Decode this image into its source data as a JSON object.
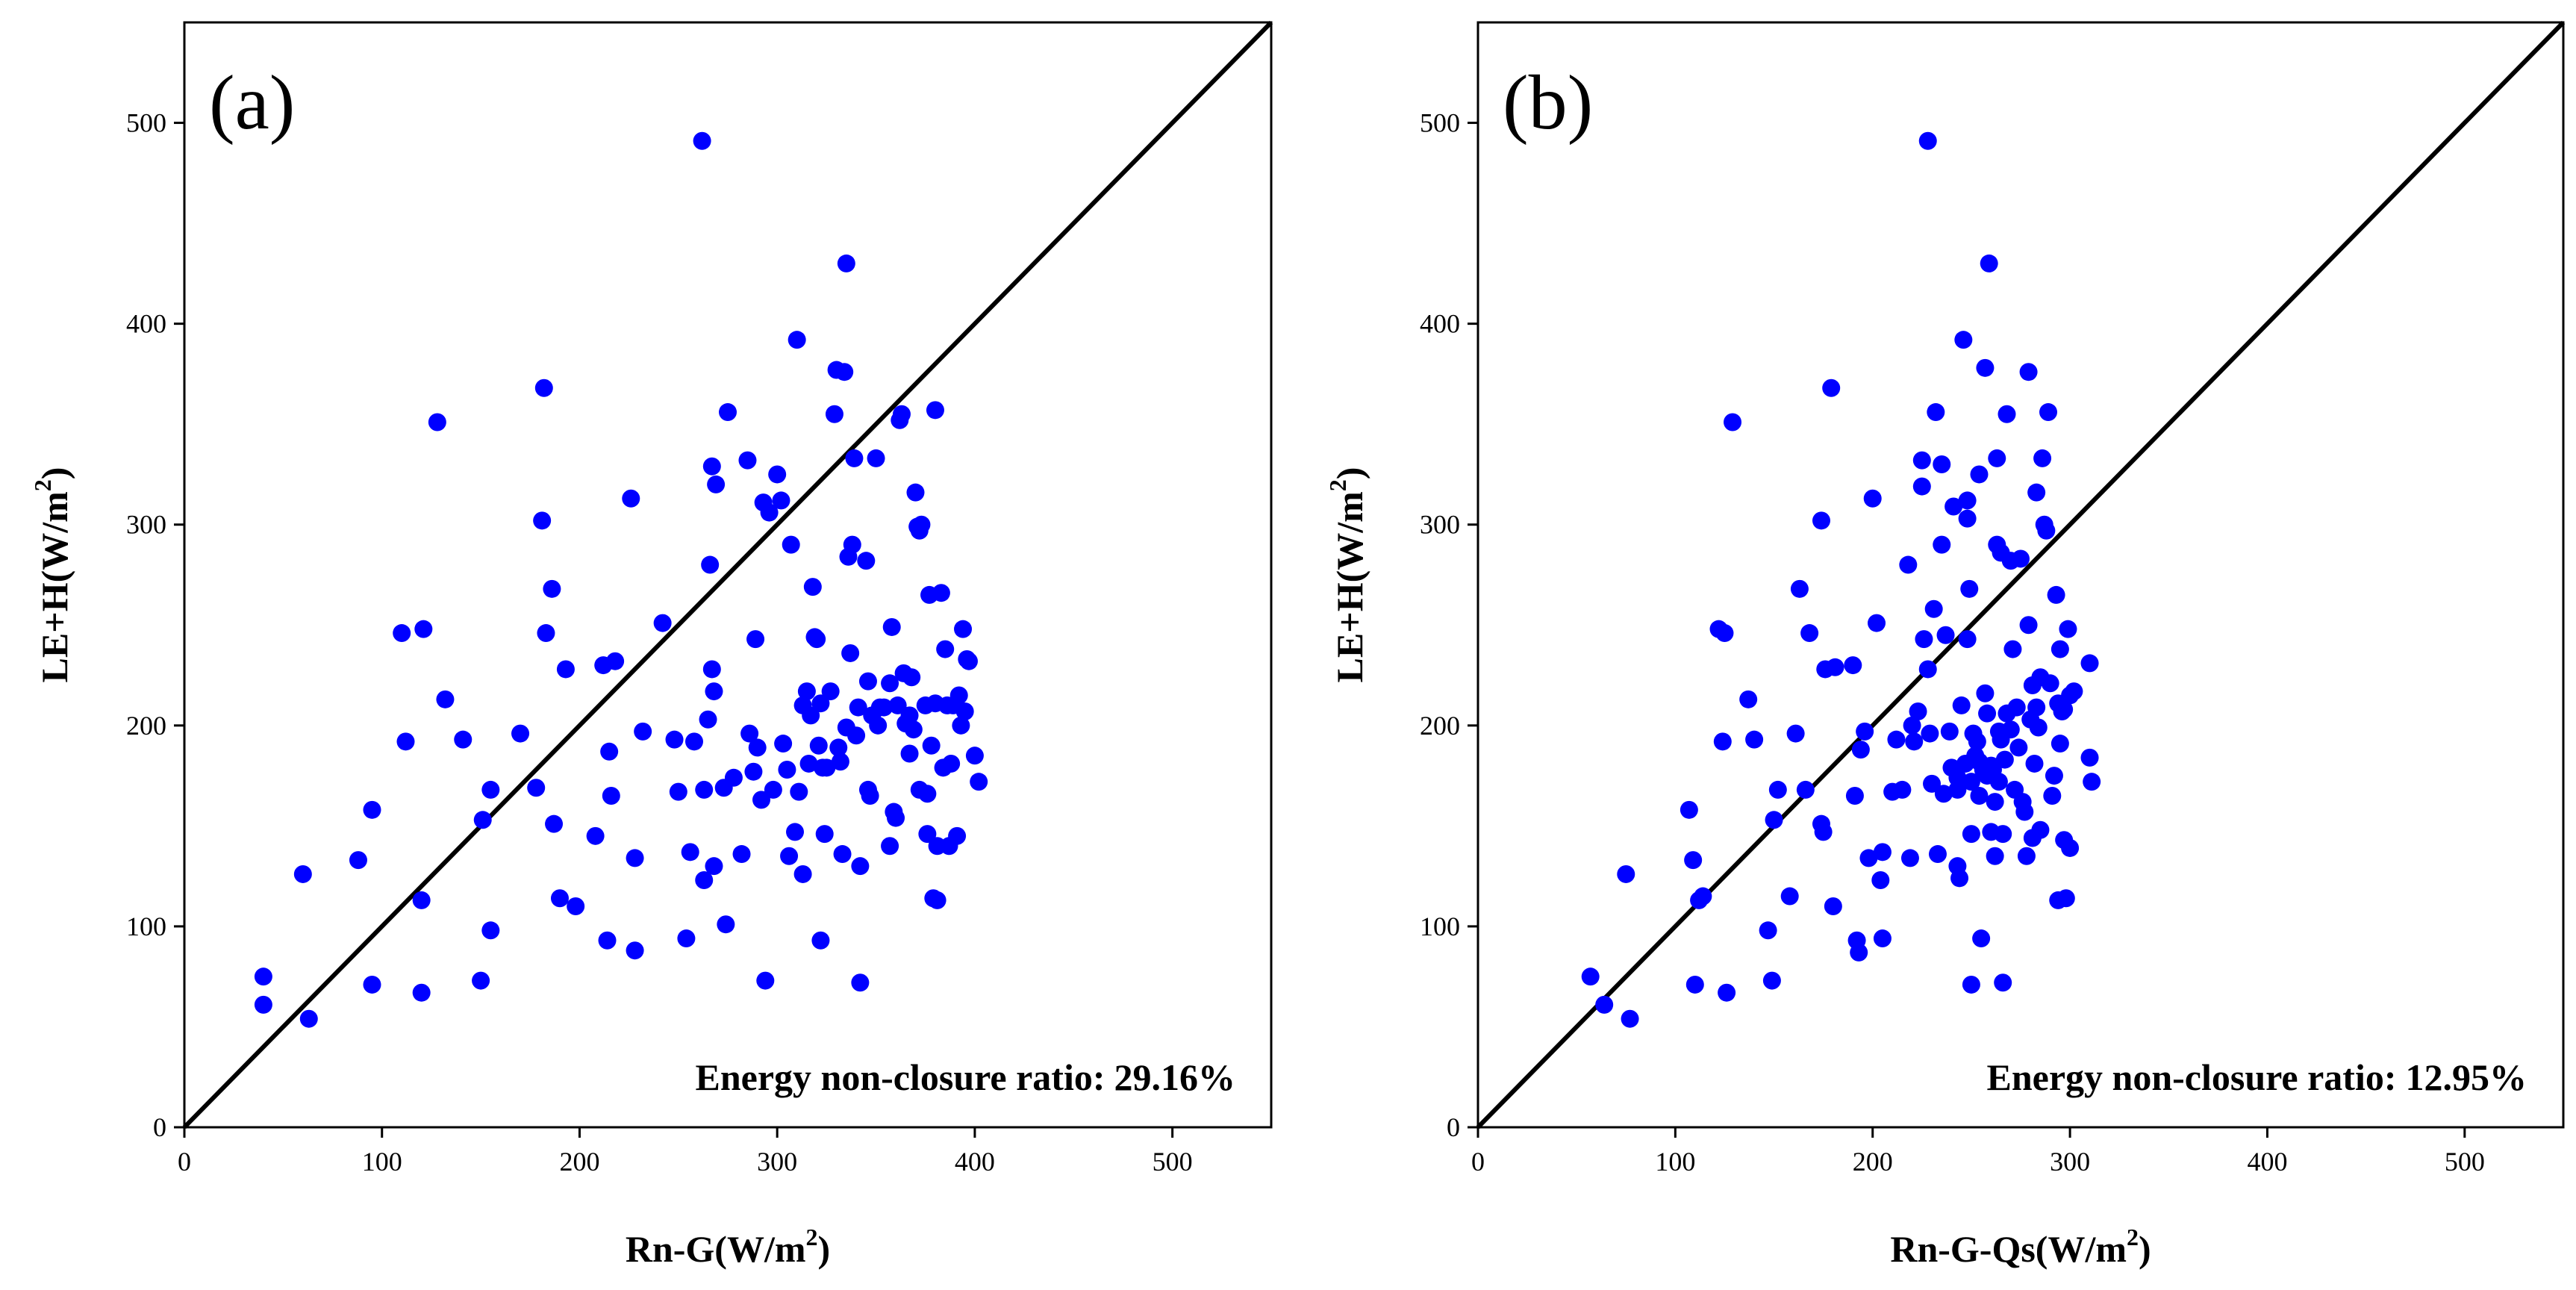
{
  "chart_data": [
    {
      "type": "scatter",
      "panel_label": "(a)",
      "xlabel": "Rn-G(W/m",
      "xlabel_sup": "2",
      "xlabel_end": ")",
      "ylabel": "LE+H(W/m",
      "ylabel_sup": "2",
      "ylabel_end": ")",
      "xlim": [
        0,
        550
      ],
      "ylim": [
        0,
        550
      ],
      "xticks": [
        0,
        100,
        200,
        300,
        400,
        500
      ],
      "yticks": [
        0,
        100,
        200,
        300,
        400,
        500
      ],
      "xtick_labels": [
        "0",
        "100",
        "200",
        "300",
        "400",
        "500"
      ],
      "ytick_labels": [
        "0",
        "100",
        "200",
        "300",
        "400",
        "500"
      ],
      "reference_line": "1:1",
      "marker_color": "#0000ff",
      "annotation_label": "Energy non-closure ratio:",
      "annotation_value": "29.16%",
      "points": [
        [
          40,
          75
        ],
        [
          40,
          61
        ],
        [
          60,
          126
        ],
        [
          63,
          54
        ],
        [
          88,
          133
        ],
        [
          95,
          158
        ],
        [
          95,
          71
        ],
        [
          110,
          246
        ],
        [
          112,
          192
        ],
        [
          120,
          113
        ],
        [
          121,
          248
        ],
        [
          120,
          67
        ],
        [
          128,
          351
        ],
        [
          132,
          213
        ],
        [
          141,
          193
        ],
        [
          150,
          73
        ],
        [
          151,
          153
        ],
        [
          155,
          168
        ],
        [
          155,
          98
        ],
        [
          170,
          196
        ],
        [
          178,
          169
        ],
        [
          181,
          302
        ],
        [
          182,
          368
        ],
        [
          183,
          246
        ],
        [
          186,
          268
        ],
        [
          187,
          151
        ],
        [
          190,
          114
        ],
        [
          193,
          228
        ],
        [
          198,
          110
        ],
        [
          208,
          145
        ],
        [
          212,
          230
        ],
        [
          214,
          93
        ],
        [
          215,
          187
        ],
        [
          216,
          165
        ],
        [
          218,
          232
        ],
        [
          226,
          313
        ],
        [
          228,
          134
        ],
        [
          228,
          88
        ],
        [
          232,
          197
        ],
        [
          242,
          251
        ],
        [
          248,
          193
        ],
        [
          250,
          167
        ],
        [
          254,
          94
        ],
        [
          256,
          137
        ],
        [
          258,
          192
        ],
        [
          262,
          491
        ],
        [
          263,
          123
        ],
        [
          263,
          168
        ],
        [
          265,
          203
        ],
        [
          266,
          280
        ],
        [
          267,
          329
        ],
        [
          267,
          228
        ],
        [
          268,
          130
        ],
        [
          268,
          217
        ],
        [
          269,
          320
        ],
        [
          273,
          169
        ],
        [
          274,
          101
        ],
        [
          275,
          356
        ],
        [
          278,
          174
        ],
        [
          282,
          136
        ],
        [
          285,
          332
        ],
        [
          286,
          196
        ],
        [
          288,
          177
        ],
        [
          289,
          243
        ],
        [
          290,
          189
        ],
        [
          292,
          163
        ],
        [
          293,
          311
        ],
        [
          294,
          73
        ],
        [
          296,
          306
        ],
        [
          298,
          168
        ],
        [
          300,
          325
        ],
        [
          302,
          312
        ],
        [
          303,
          191
        ],
        [
          305,
          178
        ],
        [
          306,
          135
        ],
        [
          307,
          290
        ],
        [
          309,
          147
        ],
        [
          310,
          392
        ],
        [
          311,
          167
        ],
        [
          313,
          210
        ],
        [
          313,
          126
        ],
        [
          315,
          217
        ],
        [
          316,
          181
        ],
        [
          317,
          205
        ],
        [
          318,
          269
        ],
        [
          319,
          244
        ],
        [
          320,
          243
        ],
        [
          321,
          190
        ],
        [
          322,
          211
        ],
        [
          322,
          93
        ],
        [
          323,
          179
        ],
        [
          324,
          146
        ],
        [
          325,
          179
        ],
        [
          327,
          217
        ],
        [
          329,
          355
        ],
        [
          330,
          377
        ],
        [
          331,
          189
        ],
        [
          332,
          182
        ],
        [
          333,
          136
        ],
        [
          334,
          376
        ],
        [
          335,
          430
        ],
        [
          335,
          199
        ],
        [
          336,
          284
        ],
        [
          337,
          236
        ],
        [
          338,
          290
        ],
        [
          339,
          333
        ],
        [
          340,
          195
        ],
        [
          341,
          209
        ],
        [
          342,
          130
        ],
        [
          342,
          72
        ],
        [
          345,
          282
        ],
        [
          346,
          168
        ],
        [
          346,
          222
        ],
        [
          347,
          165
        ],
        [
          348,
          205
        ],
        [
          350,
          333
        ],
        [
          351,
          200
        ],
        [
          352,
          209
        ],
        [
          354,
          209
        ],
        [
          357,
          221
        ],
        [
          357,
          140
        ],
        [
          358,
          249
        ],
        [
          359,
          157
        ],
        [
          360,
          154
        ],
        [
          361,
          210
        ],
        [
          362,
          352
        ],
        [
          363,
          355
        ],
        [
          364,
          226
        ],
        [
          365,
          201
        ],
        [
          367,
          205
        ],
        [
          367,
          186
        ],
        [
          368,
          224
        ],
        [
          369,
          198
        ],
        [
          370,
          316
        ],
        [
          371,
          299
        ],
        [
          372,
          297
        ],
        [
          372,
          168
        ],
        [
          373,
          300
        ],
        [
          375,
          210
        ],
        [
          376,
          166
        ],
        [
          376,
          146
        ],
        [
          377,
          265
        ],
        [
          378,
          190
        ],
        [
          379,
          114
        ],
        [
          380,
          357
        ],
        [
          380,
          211
        ],
        [
          381,
          113
        ],
        [
          381,
          140
        ],
        [
          383,
          266
        ],
        [
          384,
          179
        ],
        [
          385,
          238
        ],
        [
          386,
          210
        ],
        [
          387,
          140
        ],
        [
          388,
          181
        ],
        [
          389,
          210
        ],
        [
          391,
          145
        ],
        [
          392,
          215
        ],
        [
          393,
          200
        ],
        [
          394,
          248
        ],
        [
          395,
          207
        ],
        [
          396,
          233
        ],
        [
          397,
          232
        ],
        [
          400,
          185
        ],
        [
          402,
          172
        ]
      ]
    },
    {
      "type": "scatter",
      "panel_label": "(b)",
      "xlabel": "Rn-G-Qs(W/m",
      "xlabel_sup": "2",
      "xlabel_end": ")",
      "ylabel": "LE+H(W/m",
      "ylabel_sup": "2",
      "ylabel_end": ")",
      "xlim": [
        0,
        550
      ],
      "ylim": [
        0,
        550
      ],
      "xticks": [
        0,
        100,
        200,
        300,
        400,
        500
      ],
      "yticks": [
        0,
        100,
        200,
        300,
        400,
        500
      ],
      "xtick_labels": [
        "0",
        "100",
        "200",
        "300",
        "400",
        "500"
      ],
      "ytick_labels": [
        "0",
        "100",
        "200",
        "300",
        "400",
        "500"
      ],
      "reference_line": "1:1",
      "marker_color": "#0000ff",
      "annotation_label": "Energy non-closure ratio:",
      "annotation_value": "12.95%",
      "points": [
        [
          57,
          75
        ],
        [
          64,
          61
        ],
        [
          75,
          126
        ],
        [
          77,
          54
        ],
        [
          107,
          158
        ],
        [
          109,
          133
        ],
        [
          110,
          71
        ],
        [
          112,
          113
        ],
        [
          114,
          115
        ],
        [
          122,
          248
        ],
        [
          124,
          192
        ],
        [
          125,
          246
        ],
        [
          126,
          67
        ],
        [
          129,
          351
        ],
        [
          137,
          213
        ],
        [
          140,
          193
        ],
        [
          147,
          98
        ],
        [
          149,
          73
        ],
        [
          150,
          153
        ],
        [
          152,
          168
        ],
        [
          158,
          115
        ],
        [
          161,
          196
        ],
        [
          163,
          268
        ],
        [
          166,
          168
        ],
        [
          168,
          246
        ],
        [
          174,
          302
        ],
        [
          174,
          151
        ],
        [
          175,
          147
        ],
        [
          176,
          228
        ],
        [
          179,
          368
        ],
        [
          180,
          110
        ],
        [
          181,
          229
        ],
        [
          190,
          230
        ],
        [
          191,
          165
        ],
        [
          192,
          93
        ],
        [
          193,
          87
        ],
        [
          194,
          188
        ],
        [
          196,
          197
        ],
        [
          198,
          134
        ],
        [
          200,
          313
        ],
        [
          202,
          251
        ],
        [
          204,
          123
        ],
        [
          205,
          137
        ],
        [
          205,
          94
        ],
        [
          210,
          167
        ],
        [
          212,
          193
        ],
        [
          215,
          168
        ],
        [
          218,
          280
        ],
        [
          219,
          134
        ],
        [
          220,
          200
        ],
        [
          221,
          192
        ],
        [
          223,
          207
        ],
        [
          225,
          332
        ],
        [
          225,
          319
        ],
        [
          226,
          243
        ],
        [
          228,
          491
        ],
        [
          228,
          228
        ],
        [
          229,
          196
        ],
        [
          230,
          171
        ],
        [
          231,
          258
        ],
        [
          232,
          356
        ],
        [
          233,
          136
        ],
        [
          235,
          330
        ],
        [
          235,
          290
        ],
        [
          236,
          166
        ],
        [
          237,
          245
        ],
        [
          239,
          197
        ],
        [
          240,
          179
        ],
        [
          241,
          309
        ],
        [
          243,
          174
        ],
        [
          243,
          168
        ],
        [
          243,
          130
        ],
        [
          244,
          124
        ],
        [
          245,
          210
        ],
        [
          246,
          392
        ],
        [
          247,
          181
        ],
        [
          248,
          303
        ],
        [
          248,
          312
        ],
        [
          248,
          243
        ],
        [
          249,
          268
        ],
        [
          250,
          172
        ],
        [
          250,
          146
        ],
        [
          250,
          71
        ],
        [
          251,
          196
        ],
        [
          252,
          185
        ],
        [
          253,
          192
        ],
        [
          254,
          182
        ],
        [
          254,
          325
        ],
        [
          254,
          165
        ],
        [
          255,
          94
        ],
        [
          256,
          178
        ],
        [
          257,
          378
        ],
        [
          257,
          216
        ],
        [
          258,
          206
        ],
        [
          258,
          175
        ],
        [
          259,
          430
        ],
        [
          260,
          180
        ],
        [
          260,
          147
        ],
        [
          261,
          178
        ],
        [
          262,
          162
        ],
        [
          262,
          135
        ],
        [
          263,
          333
        ],
        [
          263,
          290
        ],
        [
          264,
          172
        ],
        [
          264,
          197
        ],
        [
          265,
          286
        ],
        [
          265,
          193
        ],
        [
          266,
          72
        ],
        [
          266,
          146
        ],
        [
          267,
          183
        ],
        [
          268,
          355
        ],
        [
          268,
          206
        ],
        [
          270,
          282
        ],
        [
          270,
          198
        ],
        [
          271,
          238
        ],
        [
          272,
          168
        ],
        [
          273,
          209
        ],
        [
          274,
          189
        ],
        [
          275,
          283
        ],
        [
          276,
          162
        ],
        [
          277,
          157
        ],
        [
          278,
          135
        ],
        [
          279,
          376
        ],
        [
          279,
          250
        ],
        [
          280,
          203
        ],
        [
          281,
          144
        ],
        [
          281,
          220
        ],
        [
          282,
          181
        ],
        [
          283,
          316
        ],
        [
          283,
          209
        ],
        [
          284,
          199
        ],
        [
          285,
          224
        ],
        [
          285,
          148
        ],
        [
          286,
          333
        ],
        [
          287,
          300
        ],
        [
          288,
          297
        ],
        [
          289,
          356
        ],
        [
          290,
          221
        ],
        [
          291,
          165
        ],
        [
          292,
          175
        ],
        [
          293,
          265
        ],
        [
          294,
          211
        ],
        [
          294,
          113
        ],
        [
          295,
          191
        ],
        [
          295,
          238
        ],
        [
          296,
          207
        ],
        [
          297,
          143
        ],
        [
          297,
          208
        ],
        [
          298,
          114
        ],
        [
          299,
          248
        ],
        [
          300,
          215
        ],
        [
          300,
          139
        ],
        [
          302,
          217
        ],
        [
          310,
          231
        ],
        [
          310,
          184
        ],
        [
          311,
          172
        ]
      ]
    }
  ]
}
